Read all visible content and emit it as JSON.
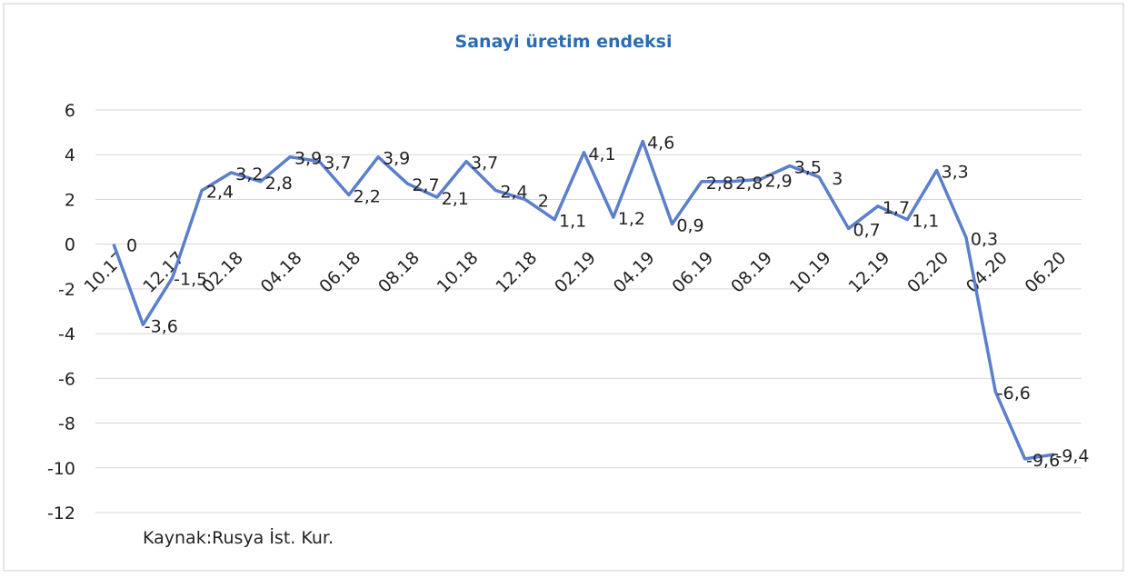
{
  "chart_data": {
    "type": "line",
    "title": "Sanayi üretim endeksi",
    "note": "Kaynak:Rusya İst. Kur.",
    "categories": [
      "10.17",
      null,
      "12.17",
      null,
      "02.18",
      null,
      "04.18",
      null,
      "06.18",
      null,
      "08.18",
      null,
      "10.18",
      null,
      "12.18",
      null,
      "02.19",
      null,
      "04.19",
      null,
      "06.19",
      null,
      "08.19",
      null,
      "10.19",
      null,
      "12.19",
      null,
      "02.20",
      null,
      "04.20",
      null,
      "06.20"
    ],
    "series": [
      {
        "name": "Sanayi üretim endeksi",
        "color": "#5b7fcb",
        "values": [
          0,
          -3.6,
          -1.5,
          2.4,
          3.2,
          2.8,
          3.9,
          3.7,
          2.2,
          3.9,
          2.7,
          2.1,
          3.7,
          2.4,
          2,
          1.1,
          4.1,
          1.2,
          4.6,
          0.9,
          2.8,
          2.8,
          2.9,
          3.5,
          3,
          0.7,
          1.7,
          1.1,
          3.3,
          0.3,
          -6.6,
          -9.6,
          -9.4
        ],
        "value_labels": [
          "0",
          "-3,6",
          "-1,5",
          "2,4",
          "3,2",
          "2,8",
          "3,9",
          "3,7",
          "2,2",
          "3,9",
          "2,7",
          "2,1",
          "3,7",
          "2,4",
          "2",
          "1,1",
          "4,1",
          "1,2",
          "4,6",
          "0,9",
          "2,8",
          "2,8",
          "2,9",
          "3,5",
          "3",
          "0,7",
          "1,7",
          "1,1",
          "3,3",
          "0,3",
          "-6,6",
          "-9,6",
          "-9,4"
        ]
      }
    ],
    "ylim": [
      -12,
      6
    ],
    "yticks": [
      -12,
      -10,
      -8,
      -6,
      -4,
      -2,
      0,
      2,
      4,
      6
    ],
    "grid": true
  }
}
